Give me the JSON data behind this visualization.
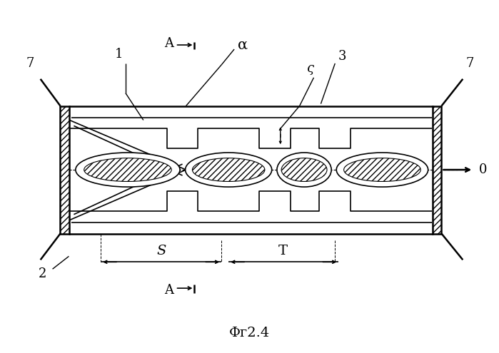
{
  "caption": "Φг2.4",
  "bg_color": "#ffffff",
  "line_color": "#000000",
  "fig_width": 6.99,
  "fig_height": 4.95,
  "dpi": 100,
  "labels": {
    "7_left": "7",
    "7_right": "7",
    "1": "1",
    "2": "2",
    "3": "3",
    "5": "ς",
    "0": "0",
    "alpha": "α",
    "A_top": "A",
    "A_bottom": "A",
    "S_dim": "S",
    "T_dim": "T"
  }
}
